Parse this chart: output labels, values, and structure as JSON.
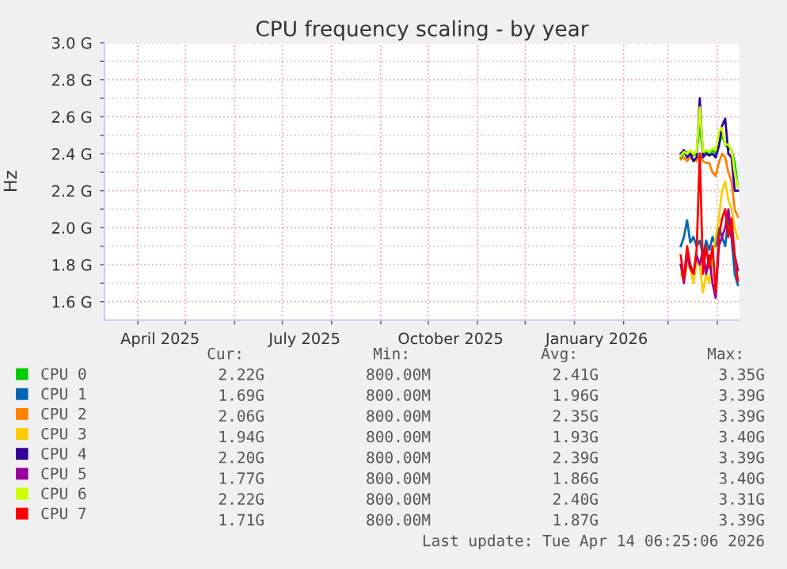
{
  "chart_data": {
    "type": "line",
    "title": "CPU frequency scaling - by year",
    "ylabel": "Hz",
    "x": [
      "2026-03-09",
      "2026-03-11",
      "2026-03-13",
      "2026-03-15",
      "2026-03-17",
      "2026-03-19",
      "2026-03-21",
      "2026-03-23",
      "2026-03-25",
      "2026-03-27",
      "2026-03-29",
      "2026-03-31",
      "2026-04-02",
      "2026-04-04",
      "2026-04-06",
      "2026-04-08",
      "2026-04-10",
      "2026-04-12",
      "2026-04-14"
    ],
    "series": [
      {
        "name": "CPU 0",
        "color": "#00cc00",
        "values": [
          2.38,
          2.4,
          2.41,
          2.4,
          2.39,
          2.41,
          2.55,
          2.4,
          2.41,
          2.4,
          2.42,
          2.4,
          2.45,
          2.5,
          2.45,
          2.43,
          2.42,
          2.35,
          2.22
        ]
      },
      {
        "name": "CPU 1",
        "color": "#0066b3",
        "values": [
          1.9,
          1.95,
          2.04,
          1.92,
          1.95,
          1.9,
          1.93,
          1.85,
          1.93,
          1.88,
          1.95,
          1.9,
          2.0,
          1.95,
          1.9,
          2.05,
          1.95,
          1.75,
          1.69
        ]
      },
      {
        "name": "CPU 2",
        "color": "#ff8000",
        "values": [
          2.37,
          2.38,
          2.36,
          2.38,
          2.37,
          2.36,
          2.4,
          2.36,
          2.35,
          2.35,
          2.3,
          2.28,
          2.35,
          2.4,
          2.38,
          2.3,
          2.25,
          2.1,
          2.06
        ]
      },
      {
        "name": "CPU 3",
        "color": "#ffcc00",
        "values": [
          1.75,
          1.72,
          1.8,
          1.78,
          1.7,
          1.82,
          1.8,
          1.65,
          1.75,
          1.7,
          1.85,
          1.95,
          2.05,
          2.2,
          2.25,
          2.15,
          2.1,
          2.0,
          1.94
        ]
      },
      {
        "name": "CPU 4",
        "color": "#330099",
        "values": [
          2.4,
          2.42,
          2.38,
          2.4,
          2.36,
          2.38,
          2.7,
          2.38,
          2.4,
          2.39,
          2.4,
          2.38,
          2.44,
          2.55,
          2.59,
          2.4,
          2.38,
          2.2,
          2.2
        ]
      },
      {
        "name": "CPU 5",
        "color": "#990099",
        "values": [
          1.8,
          1.7,
          1.85,
          1.78,
          1.75,
          1.85,
          1.8,
          1.88,
          1.75,
          1.85,
          1.7,
          1.62,
          1.9,
          1.95,
          2.0,
          2.1,
          1.95,
          1.85,
          1.77
        ]
      },
      {
        "name": "CPU 6",
        "color": "#ccff00",
        "values": [
          2.39,
          2.41,
          2.4,
          2.42,
          2.4,
          2.41,
          2.65,
          2.41,
          2.42,
          2.41,
          2.43,
          2.42,
          2.52,
          2.54,
          2.45,
          2.45,
          2.42,
          2.3,
          2.22
        ]
      },
      {
        "name": "CPU 7",
        "color": "#ff0000",
        "values": [
          1.85,
          1.72,
          1.9,
          1.8,
          1.75,
          1.88,
          2.4,
          1.75,
          1.9,
          1.78,
          1.9,
          1.65,
          1.95,
          2.05,
          2.1,
          1.95,
          2.05,
          1.85,
          1.71
        ]
      }
    ],
    "xlim": [
      "2025-03-11",
      "2026-04-15"
    ],
    "xticks": [
      {
        "value": "2025-04-01",
        "label": null
      },
      {
        "value": "2025-04-15",
        "label": "April 2025"
      },
      {
        "value": "2025-05-01",
        "label": null
      },
      {
        "value": "2025-06-01",
        "label": null
      },
      {
        "value": "2025-07-01",
        "label": null
      },
      {
        "value": "2025-07-15",
        "label": "July 2025"
      },
      {
        "value": "2025-08-01",
        "label": null
      },
      {
        "value": "2025-09-01",
        "label": null
      },
      {
        "value": "2025-10-01",
        "label": null
      },
      {
        "value": "2025-10-15",
        "label": "October 2025"
      },
      {
        "value": "2025-11-01",
        "label": null
      },
      {
        "value": "2025-12-01",
        "label": null
      },
      {
        "value": "2026-01-01",
        "label": null
      },
      {
        "value": "2026-01-15",
        "label": "January 2026"
      },
      {
        "value": "2026-02-01",
        "label": null
      },
      {
        "value": "2026-03-01",
        "label": null
      },
      {
        "value": "2026-04-01",
        "label": null
      }
    ],
    "ylim": [
      1.5,
      3.0
    ],
    "yticks": [
      {
        "value": 1.6,
        "label": "1.6 G"
      },
      {
        "value": 1.7,
        "label": null
      },
      {
        "value": 1.8,
        "label": "1.8 G"
      },
      {
        "value": 1.9,
        "label": null
      },
      {
        "value": 2.0,
        "label": "2.0 G"
      },
      {
        "value": 2.1,
        "label": null
      },
      {
        "value": 2.2,
        "label": "2.2 G"
      },
      {
        "value": 2.3,
        "label": null
      },
      {
        "value": 2.4,
        "label": "2.4 G"
      },
      {
        "value": 2.5,
        "label": null
      },
      {
        "value": 2.6,
        "label": "2.6 G"
      },
      {
        "value": 2.7,
        "label": null
      },
      {
        "value": 2.8,
        "label": "2.8 G"
      },
      {
        "value": 2.9,
        "label": null
      },
      {
        "value": 3.0,
        "label": "3.0 G"
      }
    ],
    "grid": true,
    "legend": "bottom",
    "marker": "none",
    "line_style": "solid",
    "annotations": [
      "Cur:",
      "Min:",
      "Avg:",
      "Max:",
      "2.22G",
      "800.00M",
      "2.41G",
      "3.35G",
      "1.69G",
      "800.00M",
      "1.96G",
      "3.39G",
      "2.06G",
      "800.00M",
      "2.35G",
      "3.39G",
      "1.94G",
      "800.00M",
      "1.93G",
      "3.40G",
      "2.20G",
      "800.00M",
      "2.39G",
      "3.39G",
      "1.77G",
      "800.00M",
      "1.86G",
      "3.40G",
      "2.22G",
      "800.00M",
      "2.40G",
      "3.31G",
      "1.71G",
      "800.00M",
      "1.87G",
      "3.39G",
      "Last update: Tue Apr 14 06:25:06 2026"
    ]
  }
}
